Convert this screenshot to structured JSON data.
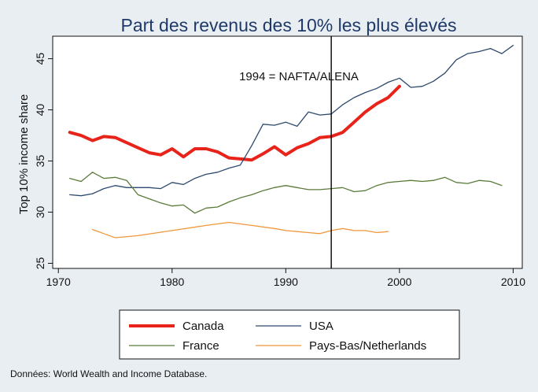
{
  "chart_data": {
    "type": "line",
    "title": "Part des revenus des 10% les plus élevés",
    "xlabel": "",
    "ylabel": "Top 10% income share",
    "xlim": [
      1969.5,
      2010.8
    ],
    "ylim": [
      24.5,
      47.2
    ],
    "x_ticks": [
      1970,
      1980,
      1990,
      2000,
      2010
    ],
    "y_ticks": [
      25,
      30,
      35,
      40,
      45
    ],
    "grid": false,
    "annotations": [
      {
        "type": "vline",
        "x": 1994
      },
      {
        "type": "text",
        "text": "1994 = NAFTA/ALENA",
        "x": 1985.9,
        "y": 42.9
      }
    ],
    "series": [
      {
        "name": "Canada",
        "color": "#e8231a",
        "points": [
          [
            1971,
            37.8
          ],
          [
            1972,
            37.5
          ],
          [
            1973,
            37.0
          ],
          [
            1974,
            37.4
          ],
          [
            1975,
            37.3
          ],
          [
            1976,
            36.8
          ],
          [
            1977,
            36.3
          ],
          [
            1978,
            35.8
          ],
          [
            1979,
            35.6
          ],
          [
            1980,
            36.2
          ],
          [
            1981,
            35.4
          ],
          [
            1982,
            36.2
          ],
          [
            1983,
            36.2
          ],
          [
            1984,
            35.9
          ],
          [
            1985,
            35.3
          ],
          [
            1986,
            35.2
          ],
          [
            1987,
            35.1
          ],
          [
            1988,
            35.7
          ],
          [
            1989,
            36.4
          ],
          [
            1990,
            35.6
          ],
          [
            1991,
            36.3
          ],
          [
            1992,
            36.7
          ],
          [
            1993,
            37.3
          ],
          [
            1994,
            37.4
          ],
          [
            1995,
            37.8
          ],
          [
            1996,
            38.8
          ],
          [
            1997,
            39.8
          ],
          [
            1998,
            40.6
          ],
          [
            1999,
            41.2
          ],
          [
            2000,
            42.3
          ]
        ]
      },
      {
        "name": "USA",
        "color": "#2c4a6e",
        "points": [
          [
            1971,
            31.7
          ],
          [
            1972,
            31.6
          ],
          [
            1973,
            31.8
          ],
          [
            1974,
            32.3
          ],
          [
            1975,
            32.6
          ],
          [
            1976,
            32.4
          ],
          [
            1977,
            32.4
          ],
          [
            1978,
            32.4
          ],
          [
            1979,
            32.3
          ],
          [
            1980,
            32.9
          ],
          [
            1981,
            32.7
          ],
          [
            1982,
            33.3
          ],
          [
            1983,
            33.7
          ],
          [
            1984,
            33.9
          ],
          [
            1985,
            34.3
          ],
          [
            1986,
            34.6
          ],
          [
            1987,
            36.5
          ],
          [
            1988,
            38.6
          ],
          [
            1989,
            38.5
          ],
          [
            1990,
            38.8
          ],
          [
            1991,
            38.4
          ],
          [
            1992,
            39.8
          ],
          [
            1993,
            39.5
          ],
          [
            1994,
            39.6
          ],
          [
            1995,
            40.5
          ],
          [
            1996,
            41.2
          ],
          [
            1997,
            41.7
          ],
          [
            1998,
            42.1
          ],
          [
            1999,
            42.7
          ],
          [
            2000,
            43.1
          ],
          [
            2001,
            42.2
          ],
          [
            2002,
            42.3
          ],
          [
            2003,
            42.8
          ],
          [
            2004,
            43.6
          ],
          [
            2005,
            44.9
          ],
          [
            2006,
            45.5
          ],
          [
            2007,
            45.7
          ],
          [
            2008,
            46.0
          ],
          [
            2009,
            45.5
          ],
          [
            2010,
            46.3
          ]
        ]
      },
      {
        "name": "France",
        "color": "#5b7a3a",
        "points": [
          [
            1971,
            33.3
          ],
          [
            1972,
            33.0
          ],
          [
            1973,
            33.9
          ],
          [
            1974,
            33.3
          ],
          [
            1975,
            33.4
          ],
          [
            1976,
            33.1
          ],
          [
            1977,
            31.7
          ],
          [
            1978,
            31.3
          ],
          [
            1979,
            30.9
          ],
          [
            1980,
            30.6
          ],
          [
            1981,
            30.7
          ],
          [
            1982,
            29.9
          ],
          [
            1983,
            30.4
          ],
          [
            1984,
            30.5
          ],
          [
            1985,
            31.0
          ],
          [
            1986,
            31.4
          ],
          [
            1987,
            31.7
          ],
          [
            1988,
            32.1
          ],
          [
            1989,
            32.4
          ],
          [
            1990,
            32.6
          ],
          [
            1991,
            32.4
          ],
          [
            1992,
            32.2
          ],
          [
            1993,
            32.2
          ],
          [
            1994,
            32.3
          ],
          [
            1995,
            32.4
          ],
          [
            1996,
            32.0
          ],
          [
            1997,
            32.1
          ],
          [
            1998,
            32.6
          ],
          [
            1999,
            32.9
          ],
          [
            2000,
            33.0
          ],
          [
            2001,
            33.1
          ],
          [
            2002,
            33.0
          ],
          [
            2003,
            33.1
          ],
          [
            2004,
            33.4
          ],
          [
            2005,
            32.9
          ],
          [
            2006,
            32.8
          ],
          [
            2007,
            33.1
          ],
          [
            2008,
            33.0
          ],
          [
            2009,
            32.6
          ]
        ]
      },
      {
        "name": "Pays-Bas/Netherlands",
        "color": "#f0973c",
        "points": [
          [
            1973,
            28.3
          ],
          [
            1974,
            27.9
          ],
          [
            1975,
            27.5
          ],
          [
            1977,
            27.7
          ],
          [
            1980,
            28.2
          ],
          [
            1983,
            28.7
          ],
          [
            1985,
            29.0
          ],
          [
            1987,
            28.7
          ],
          [
            1989,
            28.4
          ],
          [
            1990,
            28.2
          ],
          [
            1992,
            28.0
          ],
          [
            1993,
            27.9
          ],
          [
            1994,
            28.2
          ],
          [
            1995,
            28.4
          ],
          [
            1996,
            28.2
          ],
          [
            1997,
            28.2
          ],
          [
            1998,
            28.0
          ],
          [
            1999,
            28.1
          ]
        ]
      }
    ]
  },
  "legend": {
    "entries": [
      {
        "label": "Canada",
        "color": "#e8231a",
        "width": 4
      },
      {
        "label": "USA",
        "color": "#2c4a6e",
        "width": 1.3
      },
      {
        "label": "France",
        "color": "#5b7a3a",
        "width": 1.3
      },
      {
        "label": "Pays-Bas/Netherlands",
        "color": "#f0973c",
        "width": 1.3
      }
    ]
  },
  "source": "Données: World Wealth and Income Database."
}
